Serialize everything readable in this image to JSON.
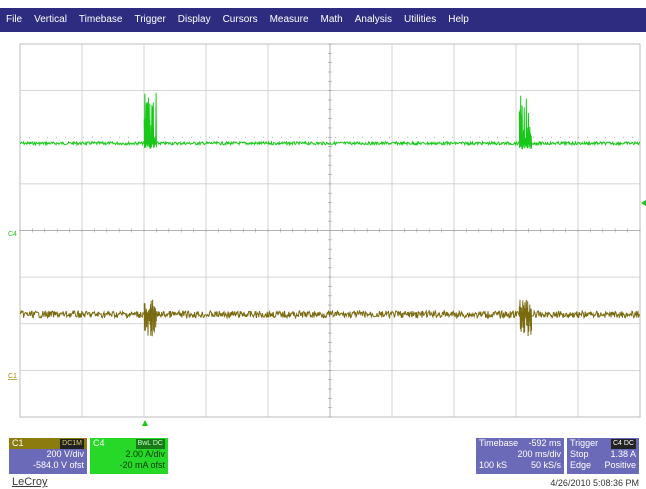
{
  "menu": [
    "File",
    "Vertical",
    "Timebase",
    "Trigger",
    "Display",
    "Cursors",
    "Measure",
    "Math",
    "Analysis",
    "Utilities",
    "Help"
  ],
  "colors": {
    "menubar": "#2d2c80",
    "grid": "#c8c8c8",
    "c1_trace": "#7a6a10",
    "c4_trace": "#18c818",
    "panel_blue": "#6a6ab8",
    "c1_header": "#8c7c10",
    "c4_header": "#28d828"
  },
  "channels": {
    "c4": {
      "marker": "C4",
      "label": "C4",
      "tag": "BwL DC",
      "vdiv": "2.00 A/div",
      "offset": "-20 mA ofst",
      "level_div": 1.87,
      "pulses_div": [
        2.1,
        8.15
      ],
      "pulse_amplitude_div": 1.1
    },
    "c1": {
      "marker": "C1",
      "label": "C1",
      "tag": "DC1M",
      "vdiv": "200 V/div",
      "offset": "-584.0 V ofst",
      "level_div": -1.8,
      "pulses_div": [
        2.1,
        8.15
      ],
      "pulse_amplitude_div": 0.6
    }
  },
  "timebase": {
    "label": "Timebase",
    "delay": "-592 ms",
    "tdiv": "200 ms/div",
    "samples": "100 kS",
    "rate": "50 kS/s"
  },
  "trigger": {
    "label": "Trigger",
    "tag": "C4 DC",
    "mode": "Stop",
    "level": "1.38 A",
    "type": "Edge",
    "slope": "Positive"
  },
  "brand": "LeCroy",
  "datetime": "4/26/2010 5:08:36 PM"
}
